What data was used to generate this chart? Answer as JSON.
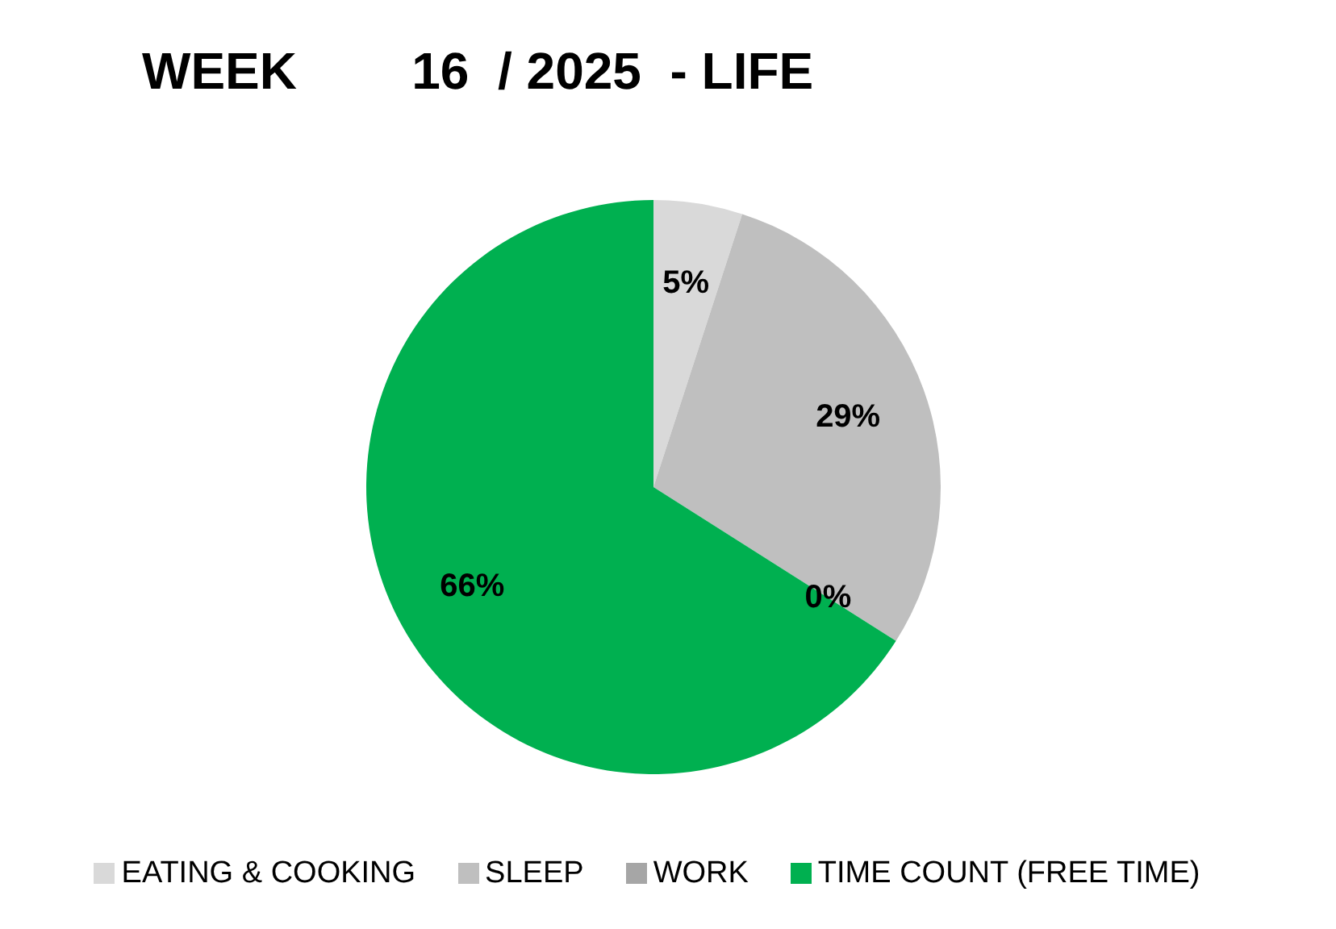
{
  "chart_data": {
    "type": "pie",
    "title": "WEEK        16  / 2025  - LIFE",
    "categories": [
      "EATING & COOKING",
      "SLEEP",
      "WORK",
      "TIME COUNT (FREE TIME)"
    ],
    "values": [
      5,
      29,
      0,
      66
    ],
    "colors": [
      "#d9d9d9",
      "#bfbfbf",
      "#a6a6a6",
      "#00b050"
    ],
    "value_labels": [
      "5%",
      "29%",
      "0%",
      "66%"
    ],
    "legend": "bottom"
  }
}
